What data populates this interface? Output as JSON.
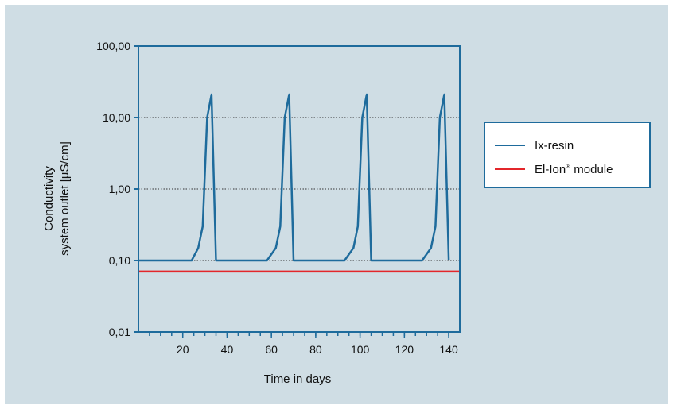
{
  "chart_data": {
    "type": "line",
    "xlabel": "Time in days",
    "ylabel_lines": [
      "Conductivity",
      "system outlet [µS/cm]"
    ],
    "yscale": "log",
    "xlim": [
      0,
      145
    ],
    "ylim": [
      0.01,
      100
    ],
    "x_ticks": [
      20,
      40,
      60,
      80,
      100,
      120,
      140
    ],
    "y_ticks": [
      {
        "value": 0.01,
        "label": "0,01"
      },
      {
        "value": 0.1,
        "label": "0,10"
      },
      {
        "value": 1,
        "label": "1,00"
      },
      {
        "value": 10,
        "label": "10,00"
      },
      {
        "value": 100,
        "label": "100,00"
      }
    ],
    "grid": "horizontal dotted at major ticks",
    "legend_position": "right",
    "series": [
      {
        "name": "Ix-resin",
        "color": "#1e6b9c",
        "points": [
          [
            0,
            0.1
          ],
          [
            24,
            0.1
          ],
          [
            27,
            0.15
          ],
          [
            29,
            0.3
          ],
          [
            31,
            10
          ],
          [
            33,
            21
          ],
          [
            35,
            0.1
          ],
          [
            58,
            0.1
          ],
          [
            62,
            0.15
          ],
          [
            64,
            0.3
          ],
          [
            66,
            10
          ],
          [
            68,
            21
          ],
          [
            70,
            0.1
          ],
          [
            93,
            0.1
          ],
          [
            97,
            0.15
          ],
          [
            99,
            0.3
          ],
          [
            101,
            10
          ],
          [
            103,
            21
          ],
          [
            105,
            0.1
          ],
          [
            128,
            0.1
          ],
          [
            132,
            0.15
          ],
          [
            134,
            0.3
          ],
          [
            136,
            10
          ],
          [
            138,
            21
          ],
          [
            140,
            0.1
          ]
        ]
      },
      {
        "name": "El-Ion",
        "name_sup": "®",
        "name_suffix": " module",
        "color": "#e3262b",
        "points": [
          [
            0,
            0.07
          ],
          [
            145,
            0.07
          ]
        ]
      }
    ]
  }
}
